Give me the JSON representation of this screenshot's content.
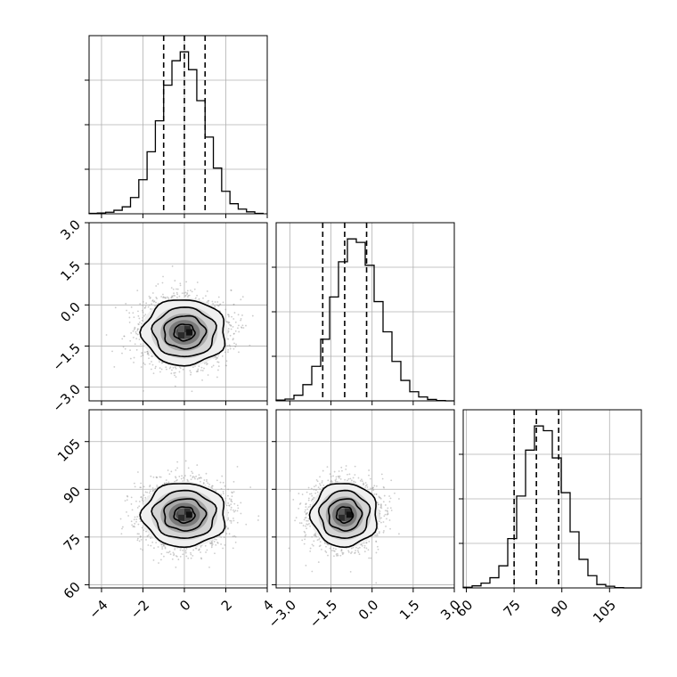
{
  "colors": {
    "line": "#000000",
    "grid": "#b0b0b0",
    "scatter": "#9a9a9a",
    "background": "#ffffff"
  },
  "chart_data": {
    "type": "corner",
    "grid": true,
    "variables": [
      {
        "id": "p0",
        "range": [
          -4.6,
          4.0
        ],
        "ticks": [
          -4,
          -2,
          0,
          2,
          4
        ],
        "tick_labels": [
          "−4",
          "−2",
          "0",
          "2",
          "4"
        ],
        "quantiles": [
          -1.0,
          0.0,
          1.0
        ],
        "hist_bins": [
          -4.6,
          -4.2,
          -3.8,
          -3.4,
          -3.0,
          -2.6,
          -2.2,
          -1.8,
          -1.4,
          -1.0,
          -0.6,
          -0.2,
          0.2,
          0.6,
          1.0,
          1.4,
          1.8,
          2.2,
          2.6,
          3.0,
          3.4,
          3.8
        ],
        "hist_counts": [
          1,
          2,
          4,
          9,
          18,
          42,
          88,
          160,
          240,
          332,
          395,
          418,
          372,
          292,
          198,
          118,
          58,
          26,
          12,
          5,
          1
        ]
      },
      {
        "id": "p1",
        "range": [
          -3.5,
          3.0
        ],
        "ticks": [
          -3.0,
          -1.5,
          0.0,
          1.5,
          3.0
        ],
        "tick_labels": [
          "−3.0",
          "−1.5",
          "0.0",
          "1.5",
          "3.0"
        ],
        "quantiles": [
          -1.8,
          -1.0,
          -0.2
        ],
        "hist_bins": [
          -3.5,
          -3.175,
          -2.85,
          -2.525,
          -2.2,
          -1.875,
          -1.55,
          -1.225,
          -0.9,
          -0.575,
          -0.25,
          0.075,
          0.4,
          0.725,
          1.05,
          1.375,
          1.7,
          2.025,
          2.35,
          2.675,
          3.0
        ],
        "hist_counts": [
          2,
          5,
          16,
          46,
          98,
          175,
          295,
          395,
          460,
          450,
          385,
          282,
          196,
          112,
          58,
          26,
          11,
          4,
          1,
          0
        ]
      },
      {
        "id": "p2",
        "range": [
          59,
          115
        ],
        "ticks": [
          60,
          75,
          90,
          105
        ],
        "tick_labels": [
          "60",
          "75",
          "90",
          "105"
        ],
        "quantiles": [
          75,
          82,
          89
        ],
        "hist_bins": [
          59,
          61.8,
          64.6,
          67.4,
          70.2,
          73,
          75.8,
          78.6,
          81.4,
          84.2,
          87,
          89.8,
          92.6,
          95.4,
          98.2,
          101,
          103.8,
          106.6,
          109.4,
          112.2,
          115
        ],
        "hist_counts": [
          2,
          6,
          14,
          30,
          65,
          145,
          270,
          405,
          476,
          462,
          382,
          280,
          165,
          84,
          36,
          10,
          5,
          1,
          0,
          0
        ]
      }
    ],
    "pairs": [
      {
        "x": "p0",
        "y": "p1",
        "center": [
          0.0,
          -1.0
        ],
        "sigma": [
          1.0,
          0.6
        ],
        "contour_levels": [
          0.5,
          1.0,
          1.5,
          2.0
        ]
      },
      {
        "x": "p0",
        "y": "p2",
        "center": [
          0.0,
          82.0
        ],
        "sigma": [
          1.0,
          5.0
        ],
        "contour_levels": [
          0.5,
          1.0,
          1.5,
          2.0
        ]
      },
      {
        "x": "p1",
        "y": "p2",
        "center": [
          -1.0,
          82.0
        ],
        "sigma": [
          0.6,
          5.0
        ],
        "contour_levels": [
          0.5,
          1.0,
          1.5,
          2.0
        ]
      }
    ]
  }
}
